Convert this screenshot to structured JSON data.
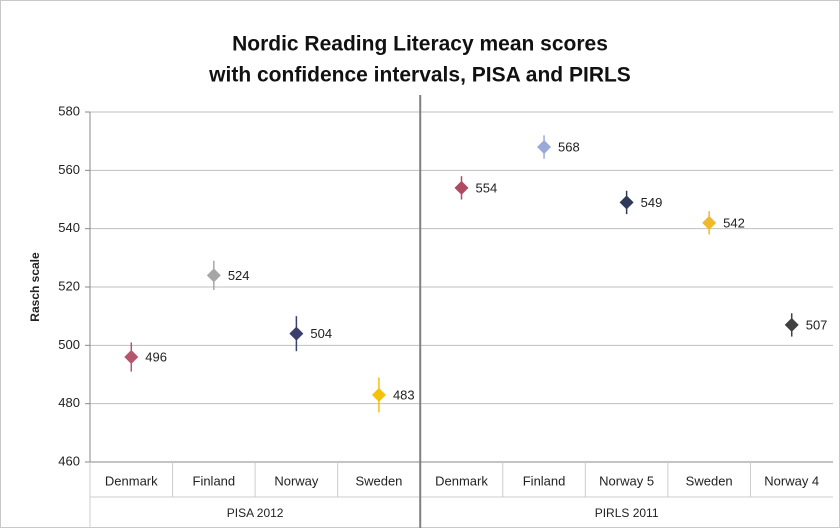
{
  "chart_data": {
    "type": "dot",
    "title": [
      "Nordic Reading Literacy mean scores",
      "with confidence intervals, PISA and PIRLS"
    ],
    "ylabel": "Rasch scale",
    "ylim": [
      460,
      580
    ],
    "yticks": [
      460,
      480,
      500,
      520,
      540,
      560,
      580
    ],
    "grid": true,
    "groups": [
      {
        "name": "PISA 2012",
        "categories": [
          "Denmark",
          "Finland",
          "Norway",
          "Sweden"
        ],
        "values": [
          496,
          524,
          504,
          483
        ],
        "errors": [
          5,
          5,
          6,
          6
        ],
        "colors": [
          "#b5566f",
          "#a6a6a6",
          "#3b3f6b",
          "#f4c20d"
        ]
      },
      {
        "name": "PIRLS 2011",
        "categories": [
          "Denmark",
          "Finland",
          "Norway 5",
          "Sweden",
          "Norway 4"
        ],
        "values": [
          554,
          568,
          549,
          542,
          507
        ],
        "errors": [
          4,
          4,
          4,
          4,
          4
        ],
        "colors": [
          "#b04a63",
          "#9aaad8",
          "#2f3a5a",
          "#f0b928",
          "#404040"
        ]
      }
    ]
  }
}
